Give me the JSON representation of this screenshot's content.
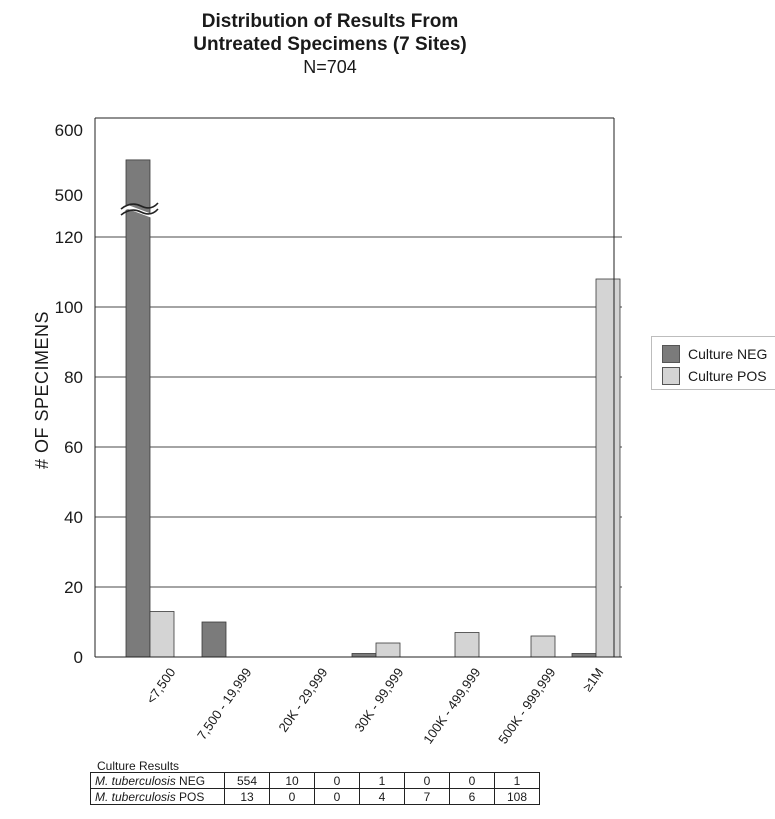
{
  "title": {
    "line1": "Distribution of Results From",
    "line2": "Untreated Specimens (7 Sites)",
    "line3": "N=704"
  },
  "colors": {
    "neg": "#7b7b7b",
    "pos": "#d4d4d4",
    "grid": "#4a4a4a",
    "bar_edge": "#3a3a3a"
  },
  "legend": {
    "items": [
      {
        "label": "Culture NEG",
        "color": "#7b7b7b"
      },
      {
        "label": "Culture POS",
        "color": "#d4d4d4"
      }
    ]
  },
  "table": {
    "caption": "Culture Results",
    "rows": [
      {
        "organism": "M. tuberculosis",
        "status": " NEG",
        "values": [
          "554",
          "10",
          "0",
          "1",
          "0",
          "0",
          "1"
        ]
      },
      {
        "organism": "M. tuberculosis",
        "status": " POS",
        "values": [
          "13",
          "0",
          "0",
          "4",
          "7",
          "6",
          "108"
        ]
      }
    ]
  },
  "chart_data": {
    "type": "bar",
    "title": "Distribution of Results From Untreated Specimens (7 Sites)",
    "subtitle": "N=704",
    "xlabel": "",
    "ylabel": "# OF SPECIMENS",
    "categories": [
      "<7,500",
      "7,500 - 19,999",
      "20K - 29,999",
      "30K - 99,999",
      "100K - 499,999",
      "500K - 999,999",
      "≥1M"
    ],
    "series": [
      {
        "name": "Culture NEG",
        "values": [
          554,
          10,
          0,
          1,
          0,
          0,
          1
        ]
      },
      {
        "name": "Culture POS",
        "values": [
          13,
          0,
          0,
          4,
          7,
          6,
          108
        ]
      }
    ],
    "y_axis": {
      "broken": true,
      "lower_range": [
        0,
        120
      ],
      "upper_range": [
        500,
        600
      ],
      "lower_ticks": [
        0,
        20,
        40,
        60,
        80,
        100,
        120
      ],
      "upper_ticks": [
        500,
        600
      ]
    },
    "grid": true,
    "legend_position": "right"
  }
}
